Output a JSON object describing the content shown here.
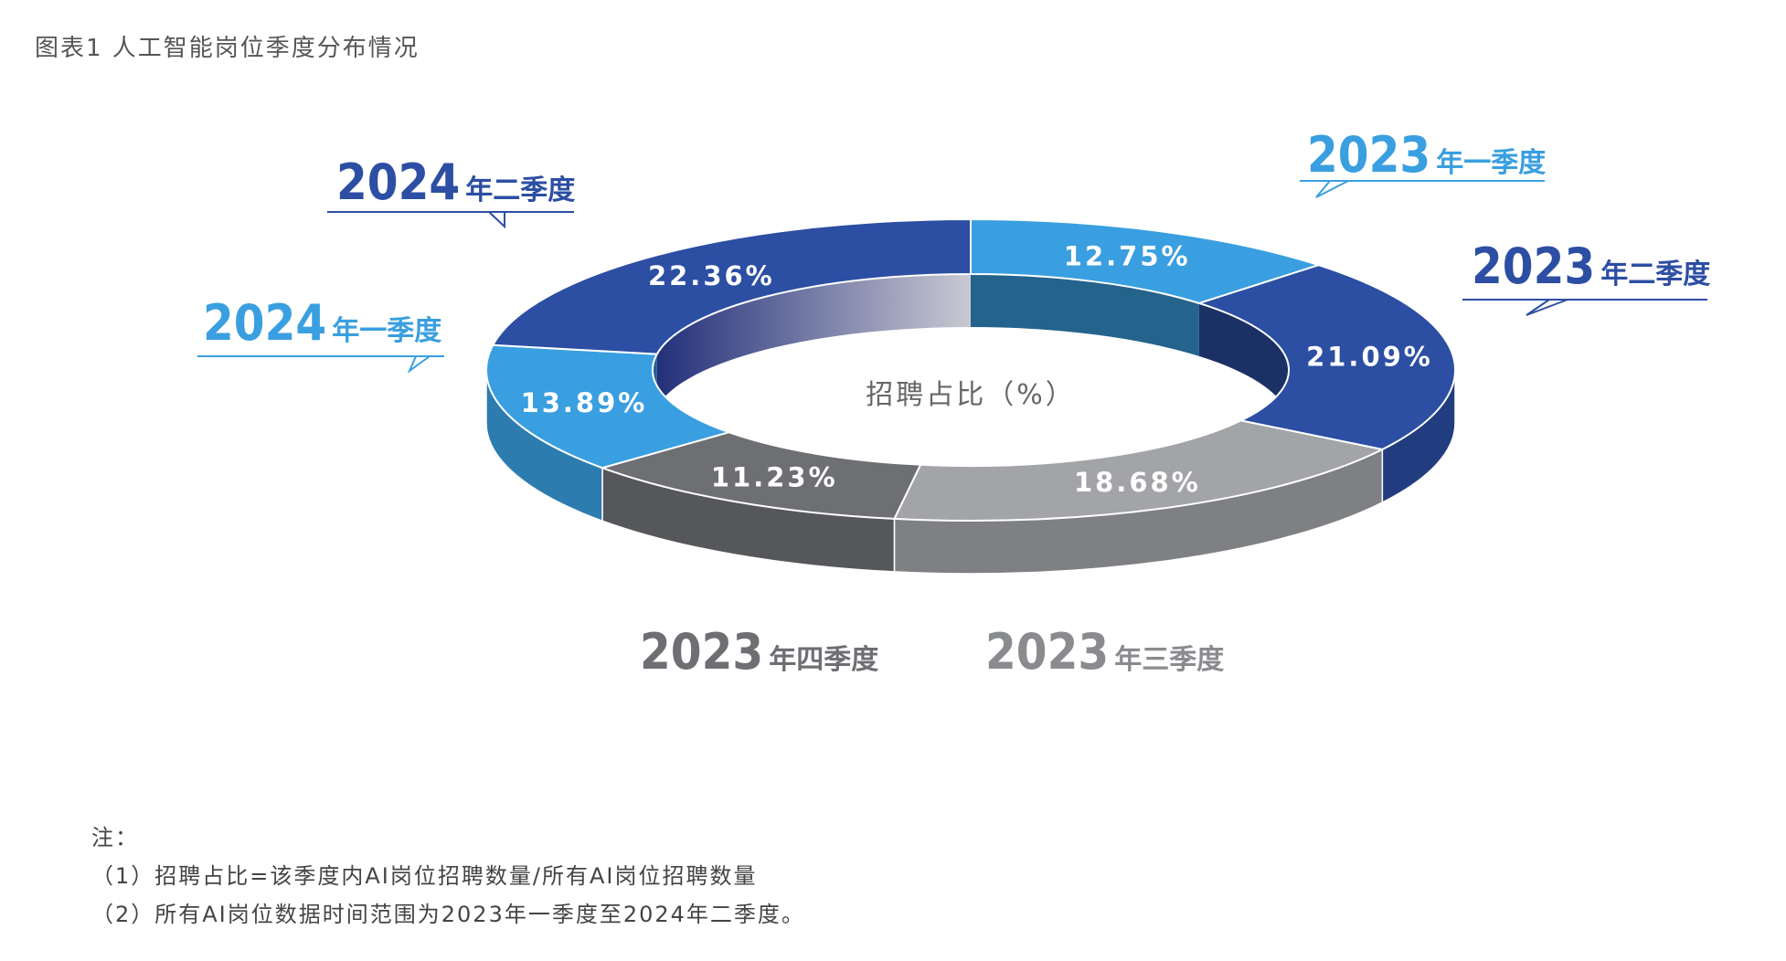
{
  "figure_title": "图表1 人工智能岗位季度分布情况",
  "chart_data": {
    "type": "pie",
    "variant": "3d-donut",
    "title": "图表1 人工智能岗位季度分布情况",
    "center_label": "招聘占比（%）",
    "slices": [
      {
        "year": "2023",
        "quarter": "年一季度",
        "value": 12.75,
        "label": "12.75%",
        "color": "#3a9fe0"
      },
      {
        "year": "2023",
        "quarter": "年二季度",
        "value": 21.09,
        "label": "21.09%",
        "color": "#2c4ea3"
      },
      {
        "year": "2023",
        "quarter": "年三季度",
        "value": 18.68,
        "label": "18.68%",
        "color": "#a3a4a8"
      },
      {
        "year": "2023",
        "quarter": "年四季度",
        "value": 11.23,
        "label": "11.23%",
        "color": "#6e6f73"
      },
      {
        "year": "2024",
        "quarter": "年一季度",
        "value": 13.89,
        "label": "13.89%",
        "color": "#3a9fe0"
      },
      {
        "year": "2024",
        "quarter": "年二季度",
        "value": 22.36,
        "label": "22.36%",
        "color": "#2c4ea3"
      }
    ]
  },
  "notes": {
    "heading": "注：",
    "line1": "（1）招聘占比=该季度内AI岗位招聘数量/所有AI岗位招聘数量",
    "line2": "（2）所有AI岗位数据时间范围为2023年一季度至2024年二季度。"
  }
}
